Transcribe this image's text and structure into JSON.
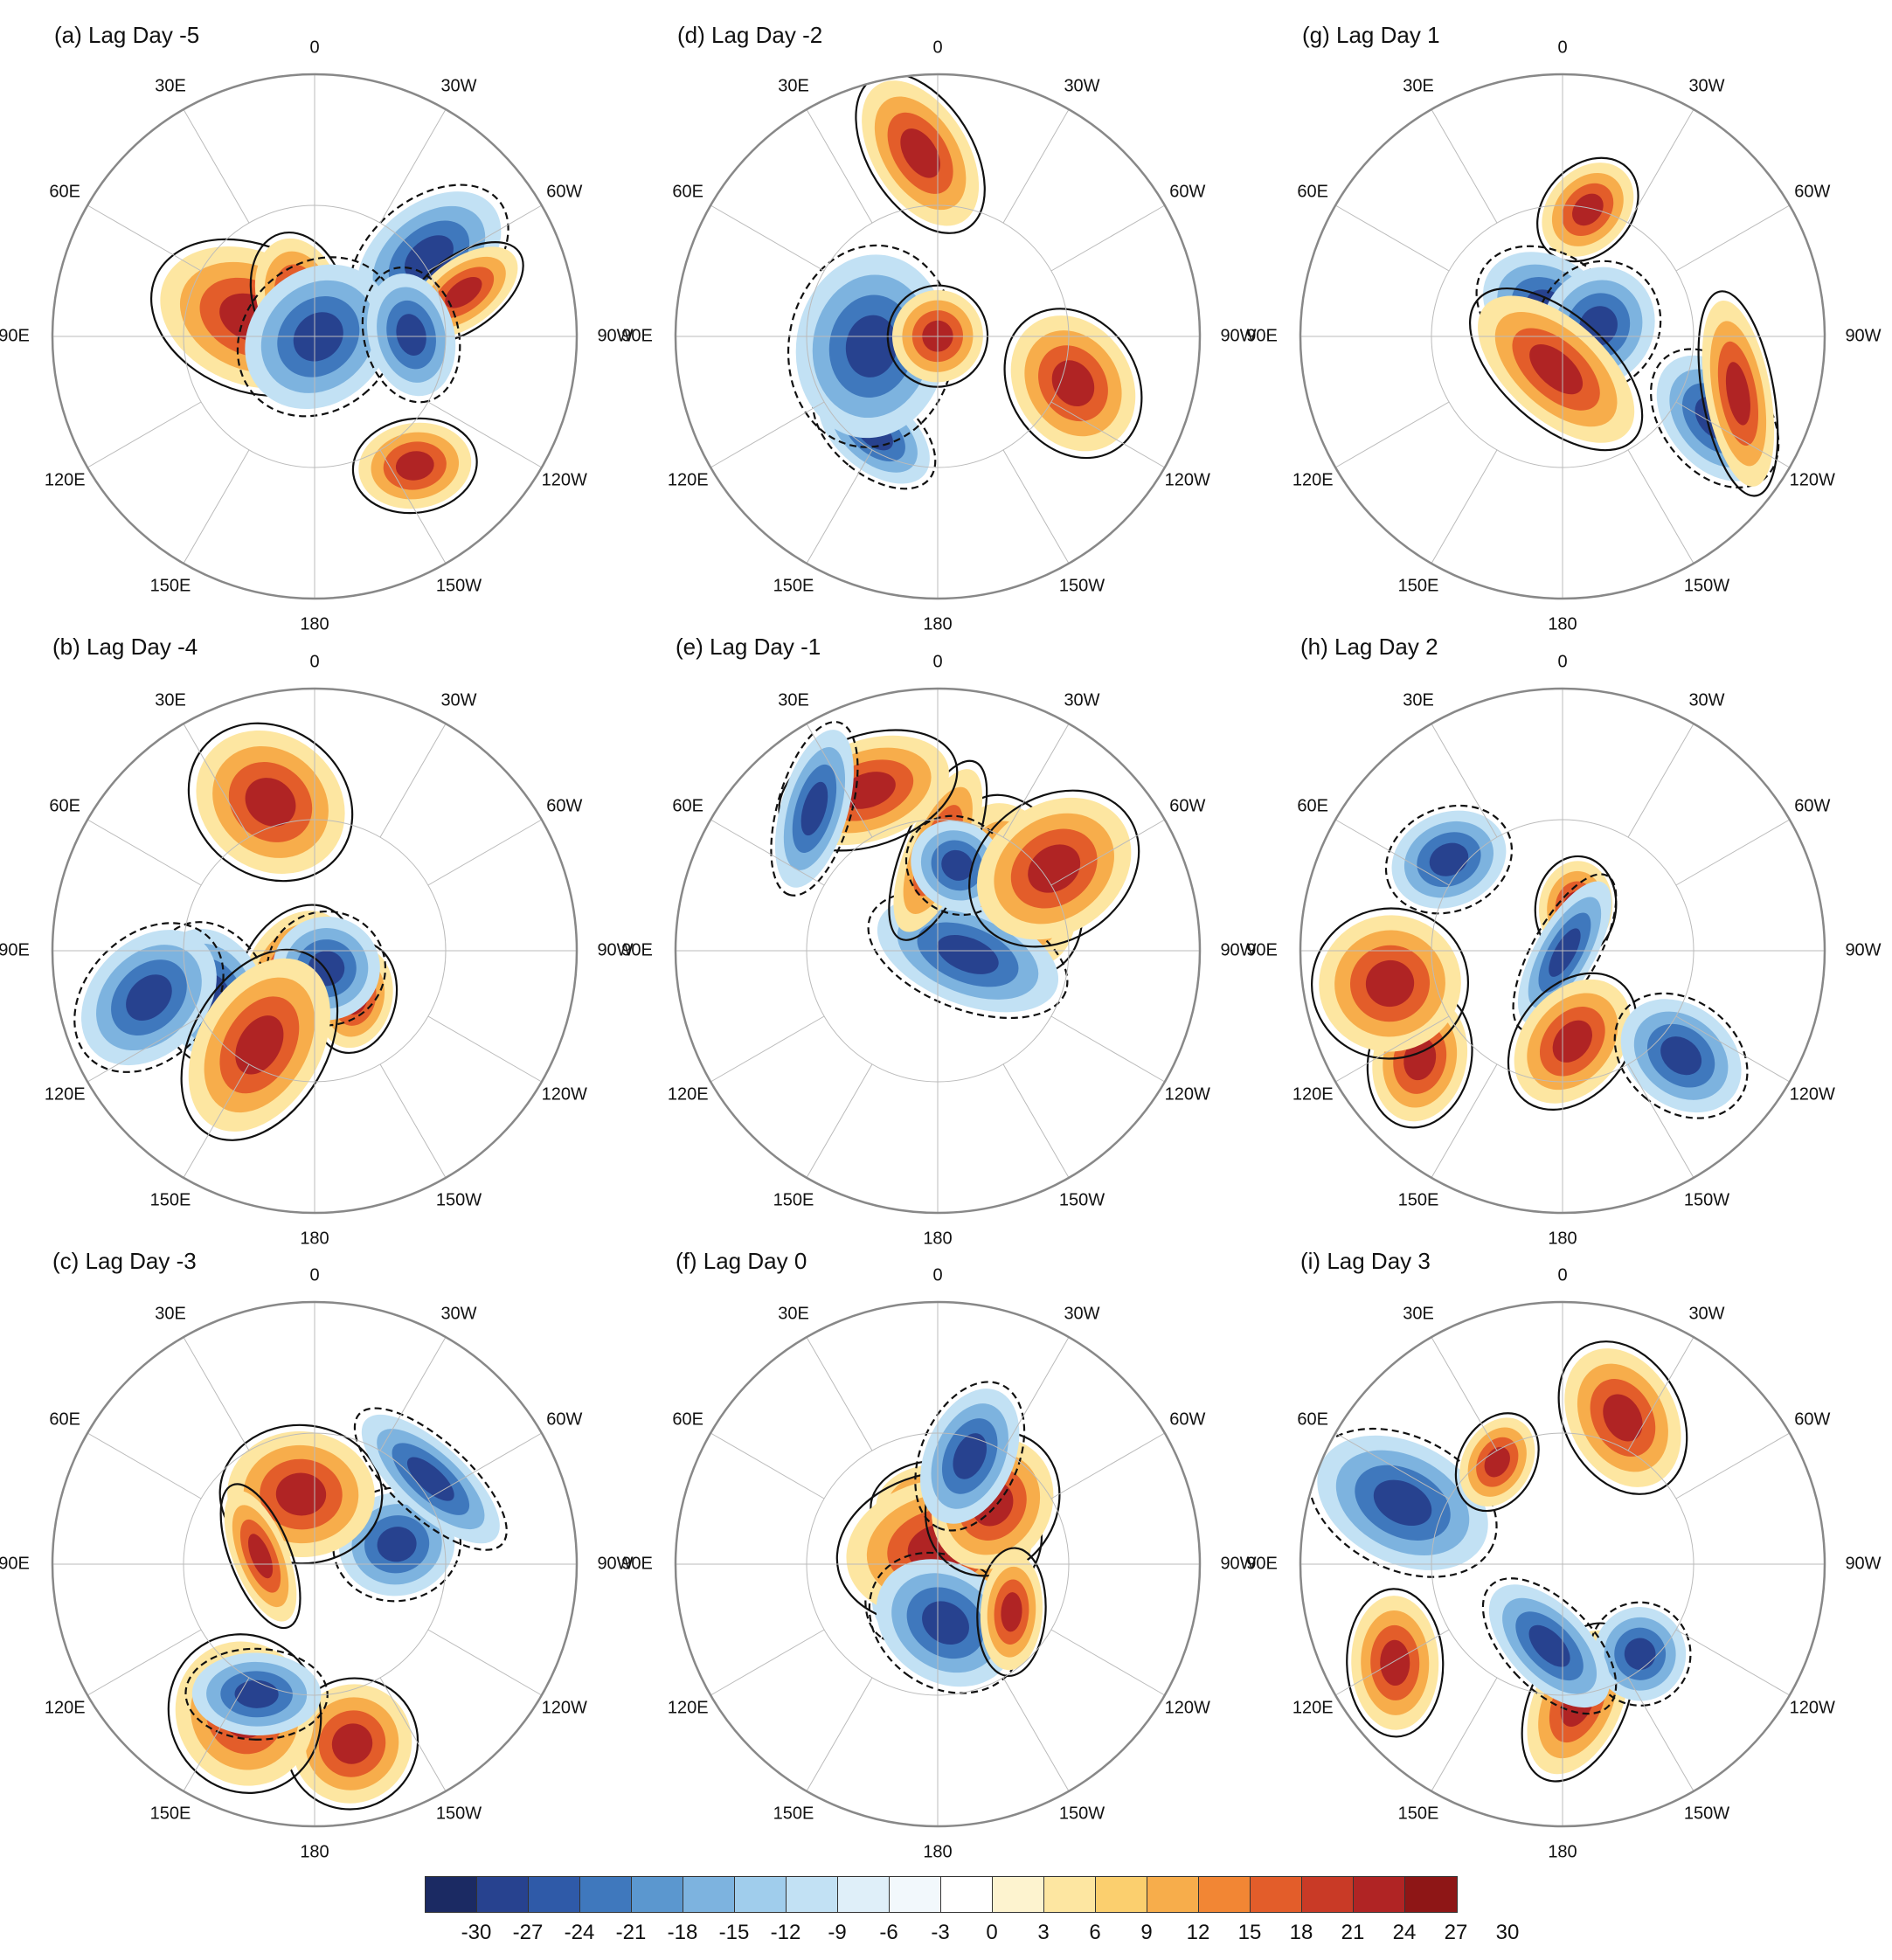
{
  "panels": [
    {
      "title": "(a) Lag Day -5"
    },
    {
      "title": "(b) Lag Day -4"
    },
    {
      "title": "(c) Lag Day -3"
    },
    {
      "title": "(d) Lag Day -2"
    },
    {
      "title": "(e) Lag Day -1"
    },
    {
      "title": "(f) Lag Day 0"
    },
    {
      "title": "(g) Lag Day 1"
    },
    {
      "title": "(h) Lag Day 2"
    },
    {
      "title": "(i) Lag Day 3"
    }
  ],
  "longitude_labels": [
    "0",
    "30W",
    "60W",
    "90W",
    "120W",
    "150W",
    "180",
    "150E",
    "120E",
    "90E",
    "60E",
    "30E"
  ],
  "colorbar": {
    "tick_labels": [
      "-30",
      "-27",
      "-24",
      "-21",
      "-18",
      "-15",
      "-12",
      "-9",
      "-6",
      "-3",
      "0",
      "3",
      "6",
      "9",
      "12",
      "15",
      "18",
      "21",
      "24",
      "27",
      "30"
    ],
    "colors": [
      "#1b2a63",
      "#27428f",
      "#2f5aa8",
      "#3f78bd",
      "#5b97cf",
      "#7db3df",
      "#a0cdec",
      "#c2e1f4",
      "#dfeff9",
      "#f2f8fc",
      "#ffffff",
      "#fdf3cf",
      "#fde6a1",
      "#fbcf6e",
      "#f7ad4b",
      "#f28634",
      "#e35d2a",
      "#c93a26",
      "#b02424",
      "#8e1616"
    ]
  }
}
